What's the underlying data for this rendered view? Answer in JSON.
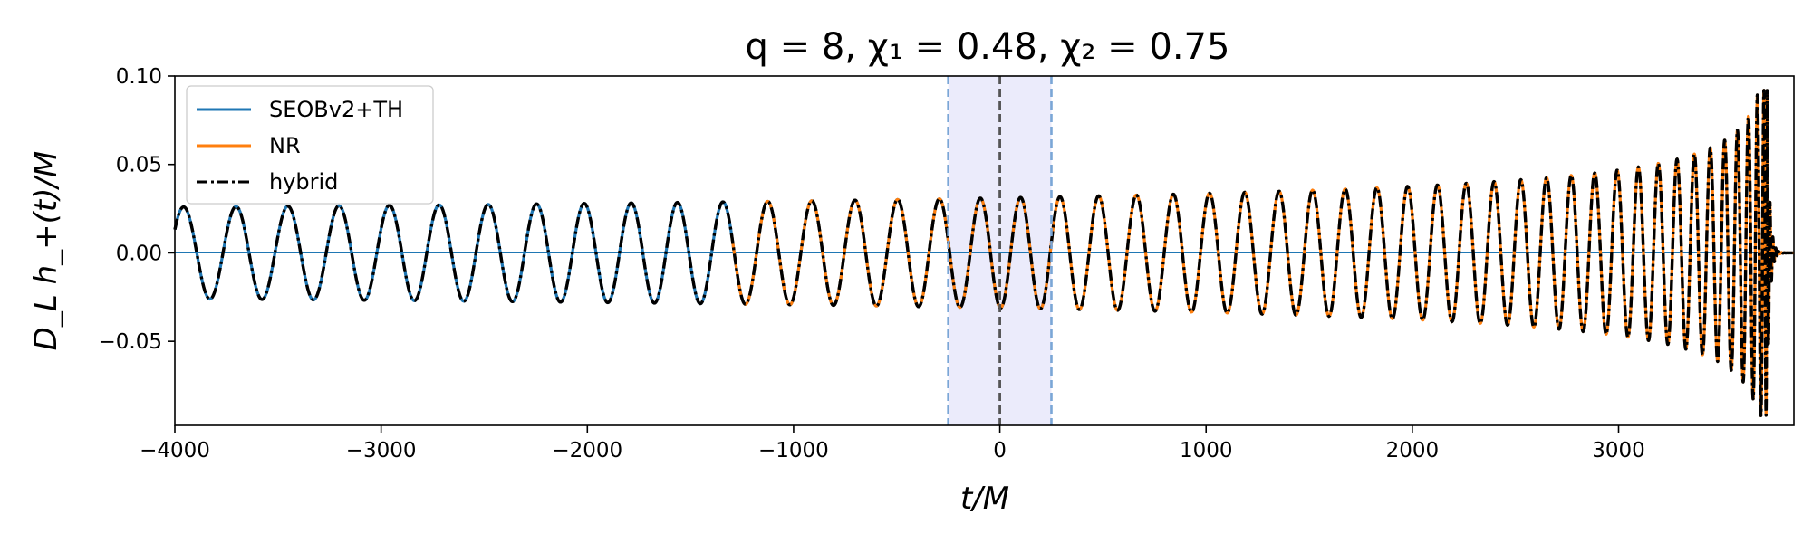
{
  "chart_data": {
    "type": "line",
    "title": "q = 8,   χ₁ = 0.48,   χ₂ = 0.75",
    "xlabel": "t/M",
    "ylabel": "D_L h_+(t)/M",
    "xlim": [
      -4000,
      3850
    ],
    "ylim": [
      -0.0975,
      0.1
    ],
    "x_ticks": [
      -4000,
      -3000,
      -2000,
      -1000,
      0,
      1000,
      2000,
      3000
    ],
    "x_tick_labels": [
      "−4000",
      "−3000",
      "−2000",
      "−1000",
      "0",
      "1000",
      "2000",
      "3000"
    ],
    "y_ticks": [
      -0.05,
      0.0,
      0.05,
      0.1
    ],
    "y_tick_labels": [
      "−0.05",
      "0.00",
      "0.05",
      "0.10"
    ],
    "grid": false,
    "legend_position": "top-left",
    "series": [
      {
        "name": "SEOBv2+TH",
        "color": "#1f77b4",
        "style": "solid",
        "x_range": [
          -4000,
          250
        ],
        "merger_time": 3720
      },
      {
        "name": "NR",
        "color": "#ff7f0e",
        "style": "solid",
        "x_range": [
          -1300,
          3850
        ],
        "merger_time": 3720
      },
      {
        "name": "hybrid",
        "color": "#000000",
        "style": "dashdot",
        "x_range": [
          -4000,
          3850
        ],
        "merger_time": 3720
      }
    ],
    "waveform": {
      "start_amplitude": 0.026,
      "peak_amplitude": 0.092,
      "merger_time": 3720,
      "ringdown_end": 3850
    },
    "annotations": {
      "hybrid_window": [
        -250,
        250
      ],
      "window_fill_color": "#e6e6fa",
      "window_edge_color": "#7aa6d6",
      "center_line_x": 0,
      "center_line_color": "#555555",
      "zero_line_color": "#1f77b4"
    }
  }
}
